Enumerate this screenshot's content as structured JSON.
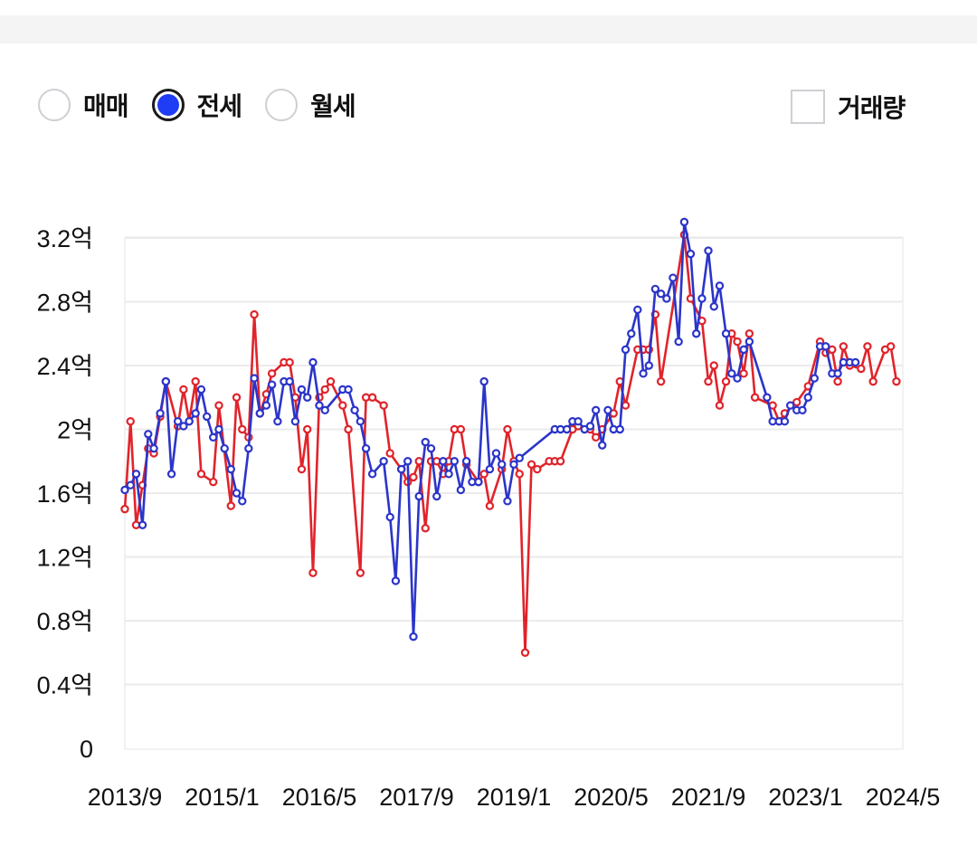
{
  "controls": {
    "radios": [
      {
        "label": "매매",
        "selected": false
      },
      {
        "label": "전세",
        "selected": true
      },
      {
        "label": "월세",
        "selected": false
      }
    ],
    "volume_checkbox": {
      "label": "거래량",
      "checked": false
    }
  },
  "colors": {
    "series_red": "#e0242b",
    "series_blue": "#2b35c9",
    "accent": "#1f3df5"
  },
  "chart_data": {
    "type": "line",
    "x_tick_labels": [
      "2013/9",
      "2015/1",
      "2016/5",
      "2017/9",
      "2019/1",
      "2020/5",
      "2021/9",
      "2023/1",
      "2024/5"
    ],
    "y_tick_labels": [
      "0",
      "0.4억",
      "0.8억",
      "1.2억",
      "1.6억",
      "2억",
      "2.4억",
      "2.8억",
      "3.2억"
    ],
    "ylim": [
      0,
      3.2
    ],
    "grid": true,
    "series": [
      {
        "color": "#e0242b",
        "points": [
          [
            2013.67,
            1.5
          ],
          [
            2013.75,
            2.05
          ],
          [
            2013.83,
            1.4
          ],
          [
            2013.92,
            1.65
          ],
          [
            2014.0,
            1.88
          ],
          [
            2014.08,
            1.85
          ],
          [
            2014.17,
            2.08
          ],
          [
            2014.25,
            2.3
          ],
          [
            2014.42,
            2.02
          ],
          [
            2014.5,
            2.25
          ],
          [
            2014.58,
            2.05
          ],
          [
            2014.67,
            2.3
          ],
          [
            2014.75,
            1.72
          ],
          [
            2014.92,
            1.67
          ],
          [
            2015.0,
            2.15
          ],
          [
            2015.17,
            1.52
          ],
          [
            2015.25,
            2.2
          ],
          [
            2015.33,
            2.0
          ],
          [
            2015.42,
            1.95
          ],
          [
            2015.5,
            2.72
          ],
          [
            2015.58,
            2.1
          ],
          [
            2015.67,
            2.22
          ],
          [
            2015.75,
            2.35
          ],
          [
            2015.92,
            2.42
          ],
          [
            2016.0,
            2.42
          ],
          [
            2016.08,
            2.2
          ],
          [
            2016.17,
            1.75
          ],
          [
            2016.25,
            2.0
          ],
          [
            2016.33,
            1.1
          ],
          [
            2016.42,
            2.2
          ],
          [
            2016.5,
            2.25
          ],
          [
            2016.58,
            2.3
          ],
          [
            2016.75,
            2.15
          ],
          [
            2016.83,
            2.0
          ],
          [
            2017.0,
            1.1
          ],
          [
            2017.08,
            2.2
          ],
          [
            2017.17,
            2.2
          ],
          [
            2017.33,
            2.15
          ],
          [
            2017.42,
            1.85
          ],
          [
            2017.58,
            1.75
          ],
          [
            2017.67,
            1.67
          ],
          [
            2017.75,
            1.7
          ],
          [
            2017.83,
            1.8
          ],
          [
            2017.92,
            1.38
          ],
          [
            2018.0,
            1.8
          ],
          [
            2018.08,
            1.8
          ],
          [
            2018.17,
            1.72
          ],
          [
            2018.25,
            1.8
          ],
          [
            2018.33,
            2.0
          ],
          [
            2018.42,
            2.0
          ],
          [
            2018.5,
            1.78
          ],
          [
            2018.67,
            1.67
          ],
          [
            2018.75,
            1.72
          ],
          [
            2018.83,
            1.52
          ],
          [
            2019.0,
            1.75
          ],
          [
            2019.08,
            2.0
          ],
          [
            2019.17,
            1.8
          ],
          [
            2019.25,
            1.72
          ],
          [
            2019.33,
            0.6
          ],
          [
            2019.42,
            1.78
          ],
          [
            2019.5,
            1.75
          ],
          [
            2019.67,
            1.8
          ],
          [
            2019.75,
            1.8
          ],
          [
            2019.83,
            1.8
          ],
          [
            2020.0,
            2.0
          ],
          [
            2020.08,
            2.02
          ],
          [
            2020.25,
            2.0
          ],
          [
            2020.33,
            1.95
          ],
          [
            2020.42,
            2.0
          ],
          [
            2020.58,
            2.1
          ],
          [
            2020.67,
            2.3
          ],
          [
            2020.75,
            2.15
          ],
          [
            2020.92,
            2.5
          ],
          [
            2021.0,
            2.5
          ],
          [
            2021.08,
            2.5
          ],
          [
            2021.17,
            2.72
          ],
          [
            2021.25,
            2.3
          ],
          [
            2021.58,
            3.22
          ],
          [
            2021.67,
            2.82
          ],
          [
            2021.83,
            2.68
          ],
          [
            2021.92,
            2.3
          ],
          [
            2022.0,
            2.4
          ],
          [
            2022.08,
            2.15
          ],
          [
            2022.17,
            2.3
          ],
          [
            2022.25,
            2.6
          ],
          [
            2022.33,
            2.55
          ],
          [
            2022.42,
            2.35
          ],
          [
            2022.5,
            2.6
          ],
          [
            2022.58,
            2.2
          ],
          [
            2022.83,
            2.15
          ],
          [
            2022.92,
            2.05
          ],
          [
            2023.0,
            2.1
          ],
          [
            2023.17,
            2.17
          ],
          [
            2023.33,
            2.27
          ],
          [
            2023.5,
            2.55
          ],
          [
            2023.58,
            2.48
          ],
          [
            2023.67,
            2.5
          ],
          [
            2023.75,
            2.3
          ],
          [
            2023.83,
            2.52
          ],
          [
            2023.92,
            2.4
          ],
          [
            2024.08,
            2.38
          ],
          [
            2024.17,
            2.52
          ],
          [
            2024.25,
            2.3
          ],
          [
            2024.42,
            2.5
          ],
          [
            2024.5,
            2.52
          ],
          [
            2024.58,
            2.3
          ]
        ]
      },
      {
        "color": "#2b35c9",
        "points": [
          [
            2013.67,
            1.62
          ],
          [
            2013.75,
            1.65
          ],
          [
            2013.83,
            1.72
          ],
          [
            2013.92,
            1.4
          ],
          [
            2014.0,
            1.97
          ],
          [
            2014.08,
            1.88
          ],
          [
            2014.17,
            2.1
          ],
          [
            2014.25,
            2.3
          ],
          [
            2014.33,
            1.72
          ],
          [
            2014.42,
            2.05
          ],
          [
            2014.5,
            2.02
          ],
          [
            2014.58,
            2.05
          ],
          [
            2014.67,
            2.1
          ],
          [
            2014.75,
            2.25
          ],
          [
            2014.83,
            2.08
          ],
          [
            2014.92,
            1.95
          ],
          [
            2015.0,
            2.0
          ],
          [
            2015.08,
            1.88
          ],
          [
            2015.17,
            1.75
          ],
          [
            2015.25,
            1.6
          ],
          [
            2015.33,
            1.55
          ],
          [
            2015.42,
            1.88
          ],
          [
            2015.5,
            2.32
          ],
          [
            2015.58,
            2.1
          ],
          [
            2015.67,
            2.15
          ],
          [
            2015.75,
            2.28
          ],
          [
            2015.83,
            2.05
          ],
          [
            2015.92,
            2.3
          ],
          [
            2016.0,
            2.3
          ],
          [
            2016.08,
            2.05
          ],
          [
            2016.17,
            2.25
          ],
          [
            2016.25,
            2.2
          ],
          [
            2016.33,
            2.42
          ],
          [
            2016.42,
            2.15
          ],
          [
            2016.5,
            2.12
          ],
          [
            2016.75,
            2.25
          ],
          [
            2016.83,
            2.25
          ],
          [
            2016.92,
            2.12
          ],
          [
            2017.0,
            2.05
          ],
          [
            2017.08,
            1.88
          ],
          [
            2017.17,
            1.72
          ],
          [
            2017.33,
            1.8
          ],
          [
            2017.42,
            1.45
          ],
          [
            2017.5,
            1.05
          ],
          [
            2017.58,
            1.75
          ],
          [
            2017.67,
            1.8
          ],
          [
            2017.75,
            0.7
          ],
          [
            2017.83,
            1.58
          ],
          [
            2017.92,
            1.92
          ],
          [
            2018.0,
            1.88
          ],
          [
            2018.08,
            1.58
          ],
          [
            2018.17,
            1.8
          ],
          [
            2018.25,
            1.72
          ],
          [
            2018.33,
            1.8
          ],
          [
            2018.42,
            1.62
          ],
          [
            2018.5,
            1.8
          ],
          [
            2018.58,
            1.67
          ],
          [
            2018.67,
            1.67
          ],
          [
            2018.75,
            2.3
          ],
          [
            2018.83,
            1.75
          ],
          [
            2018.92,
            1.85
          ],
          [
            2019.0,
            1.78
          ],
          [
            2019.08,
            1.55
          ],
          [
            2019.17,
            1.78
          ],
          [
            2019.25,
            1.82
          ],
          [
            2019.75,
            2.0
          ],
          [
            2019.83,
            2.0
          ],
          [
            2019.92,
            2.0
          ],
          [
            2020.0,
            2.05
          ],
          [
            2020.08,
            2.05
          ],
          [
            2020.17,
            2.0
          ],
          [
            2020.25,
            2.02
          ],
          [
            2020.33,
            2.12
          ],
          [
            2020.42,
            1.9
          ],
          [
            2020.5,
            2.12
          ],
          [
            2020.58,
            2.0
          ],
          [
            2020.67,
            2.0
          ],
          [
            2020.75,
            2.5
          ],
          [
            2020.83,
            2.6
          ],
          [
            2020.92,
            2.75
          ],
          [
            2021.0,
            2.35
          ],
          [
            2021.08,
            2.4
          ],
          [
            2021.17,
            2.88
          ],
          [
            2021.25,
            2.85
          ],
          [
            2021.33,
            2.82
          ],
          [
            2021.42,
            2.95
          ],
          [
            2021.5,
            2.55
          ],
          [
            2021.58,
            3.3
          ],
          [
            2021.67,
            3.1
          ],
          [
            2021.75,
            2.6
          ],
          [
            2021.83,
            2.82
          ],
          [
            2021.92,
            3.12
          ],
          [
            2022.0,
            2.77
          ],
          [
            2022.08,
            2.9
          ],
          [
            2022.17,
            2.6
          ],
          [
            2022.25,
            2.35
          ],
          [
            2022.33,
            2.32
          ],
          [
            2022.42,
            2.5
          ],
          [
            2022.5,
            2.55
          ],
          [
            2022.75,
            2.2
          ],
          [
            2022.83,
            2.05
          ],
          [
            2022.92,
            2.05
          ],
          [
            2023.0,
            2.05
          ],
          [
            2023.08,
            2.15
          ],
          [
            2023.17,
            2.12
          ],
          [
            2023.25,
            2.12
          ],
          [
            2023.33,
            2.2
          ],
          [
            2023.42,
            2.32
          ],
          [
            2023.5,
            2.52
          ],
          [
            2023.58,
            2.52
          ],
          [
            2023.67,
            2.35
          ],
          [
            2023.75,
            2.35
          ],
          [
            2023.83,
            2.42
          ],
          [
            2023.92,
            2.42
          ],
          [
            2024.0,
            2.42
          ]
        ]
      }
    ]
  }
}
